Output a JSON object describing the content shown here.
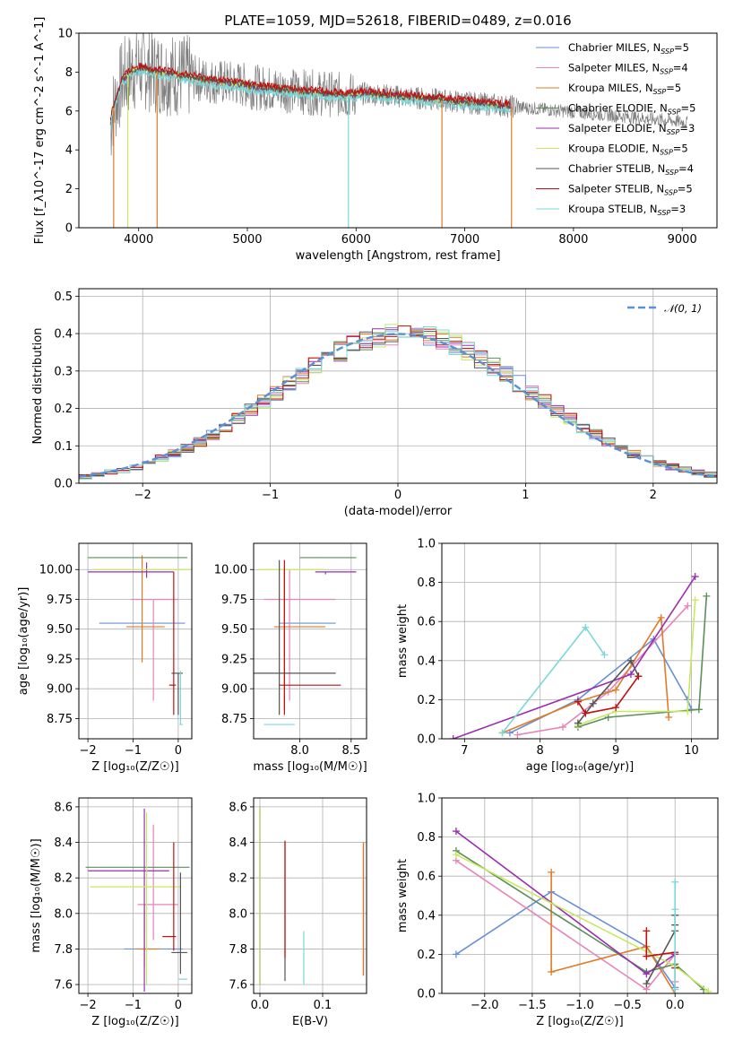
{
  "colors": [
    "#6a8fd8",
    "#e784b8",
    "#e07b25",
    "#5a8f5a",
    "#9b2db0",
    "#c8e860",
    "#555555",
    "#c01010",
    "#7ad8d8"
  ],
  "chart_data": [
    {
      "id": "spectrum",
      "type": "line",
      "title": "PLATE=1059, MJD=52618, FIBERID=0489, z=0.016",
      "xlabel": "wavelength [Angstrom, rest frame]",
      "ylabel": "Flux [f_λ10^-17 erg cm^-2 s^-1 A^-1]",
      "xlim": [
        3450,
        9320
      ],
      "ylim": [
        0,
        10
      ],
      "xticks": [
        "4000",
        "5000",
        "6000",
        "7000",
        "8000",
        "9000"
      ],
      "yticks": [
        "0",
        "2",
        "4",
        "6",
        "8",
        "10"
      ],
      "grid": false,
      "legend_placement": "upper-right",
      "legend": [
        {
          "label": "Chabrier MILES, N",
          "sub": "SSP",
          "suffix": "=5"
        },
        {
          "label": "Salpeter MILES, N",
          "sub": "SSP",
          "suffix": "=4"
        },
        {
          "label": "Kroupa MILES, N",
          "sub": "SSP",
          "suffix": "=5"
        },
        {
          "label": "Chabrier ELODIE, N",
          "sub": "SSP",
          "suffix": "=5"
        },
        {
          "label": "Salpeter ELODIE, N",
          "sub": "SSP",
          "suffix": "=3"
        },
        {
          "label": "Kroupa ELODIE, N",
          "sub": "SSP",
          "suffix": "=5"
        },
        {
          "label": "Chabrier STELIB, N",
          "sub": "SSP",
          "suffix": "=4"
        },
        {
          "label": "Salpeter STELIB, N",
          "sub": "SSP",
          "suffix": "=5"
        },
        {
          "label": "Kroupa STELIB, N",
          "sub": "SSP",
          "suffix": "=3"
        }
      ],
      "model_trend": {
        "x": [
          3750,
          3850,
          3950,
          4050,
          4150,
          4300,
          4500,
          4700,
          4900,
          5100,
          5300,
          5500,
          5700,
          5900,
          6100,
          6300,
          6500,
          6700,
          6900,
          7100,
          7300,
          7500,
          7700,
          7900,
          8100,
          8300,
          8500,
          8700,
          8900,
          9050
        ],
        "y": [
          5.8,
          7.6,
          8.1,
          8.2,
          8.0,
          7.9,
          7.7,
          7.5,
          7.4,
          7.2,
          7.1,
          7.0,
          6.9,
          6.8,
          6.9,
          6.8,
          6.7,
          6.6,
          6.5,
          6.4,
          6.3,
          6.2,
          6.1,
          6.0,
          5.9,
          5.8,
          5.7,
          5.6,
          5.5,
          5.4
        ]
      }
    },
    {
      "id": "residuals",
      "type": "step",
      "xlabel": "(data-model)/error",
      "ylabel": "Normed distribution",
      "xlim": [
        -2.5,
        2.5
      ],
      "ylim": [
        0,
        0.52
      ],
      "xticks": [
        "−2",
        "−1",
        "0",
        "1",
        "2"
      ],
      "yticks": [
        "0.0",
        "0.1",
        "0.2",
        "0.3",
        "0.4",
        "0.5"
      ],
      "grid": true,
      "legend": [
        {
          "label": "𝒩(0, 1)"
        }
      ],
      "bin_width": 0.1
    },
    {
      "id": "age-vs-Z",
      "type": "errorbar",
      "xlabel": "Z [log₁₀(Z/Z☉)]",
      "ylabel": "age  [log₁₀(age/yr)]",
      "xlim": [
        -2.2,
        0.3
      ],
      "ylim": [
        8.58,
        10.22
      ],
      "xticks": [
        "−2",
        "−1",
        "0"
      ],
      "yticks": [
        "8.75",
        "9.00",
        "9.25",
        "9.50",
        "9.75",
        "10.00"
      ],
      "grid": true,
      "points": [
        {
          "x": -0.6,
          "y": 9.55,
          "xerr": [
            1.15,
            0.75
          ],
          "yerr": [
            0.0,
            0.0
          ]
        },
        {
          "x": -0.55,
          "y": 9.75,
          "xerr": [
            0.5,
            0.55
          ],
          "yerr": [
            0.85,
            0.0
          ]
        },
        {
          "x": -0.8,
          "y": 9.52,
          "xerr": [
            0.35,
            0.5
          ],
          "yerr": [
            0.3,
            0.6
          ]
        },
        {
          "x": -0.9,
          "y": 10.1,
          "xerr": [
            1.1,
            1.1
          ],
          "yerr": [
            0.0,
            0.0
          ]
        },
        {
          "x": -0.7,
          "y": 9.98,
          "xerr": [
            1.3,
            0.6
          ],
          "yerr": [
            0.05,
            0.08
          ]
        },
        {
          "x": -0.6,
          "y": 10.0,
          "xerr": [
            1.3,
            0.9
          ],
          "yerr": [
            0.0,
            0.0
          ]
        },
        {
          "x": 0.0,
          "y": 9.13,
          "xerr": [
            0.15,
            0.1
          ],
          "yerr": [
            0.35,
            0.0
          ]
        },
        {
          "x": -0.1,
          "y": 9.03,
          "xerr": [
            0.1,
            0.05
          ],
          "yerr": [
            0.25,
            0.95
          ]
        },
        {
          "x": 0.05,
          "y": 8.7,
          "xerr": [
            0.02,
            0.05
          ],
          "yerr": [
            0.0,
            0.45
          ]
        }
      ]
    },
    {
      "id": "age-vs-mass",
      "type": "errorbar",
      "xlabel": "mass [log₁₀(M/M☉)]",
      "ylabel": "",
      "xlim": [
        7.55,
        8.65
      ],
      "ylim": [
        8.58,
        10.22
      ],
      "xticks": [
        "8.0",
        "8.5"
      ],
      "yticks": [
        "8.75",
        "9.00",
        "9.25",
        "9.50",
        "9.75",
        "10.00"
      ],
      "grid": true,
      "points": [
        {
          "x": 7.85,
          "y": 9.55,
          "xerr": [
            0.05,
            0.5
          ],
          "yerr": [
            0.35,
            0.45
          ]
        },
        {
          "x": 7.9,
          "y": 9.75,
          "xerr": [
            0.25,
            0.45
          ],
          "yerr": [
            0.85,
            0.25
          ]
        },
        {
          "x": 7.85,
          "y": 9.52,
          "xerr": [
            0.1,
            0.4
          ],
          "yerr": [
            0.7,
            0.5
          ]
        },
        {
          "x": 8.05,
          "y": 10.1,
          "xerr": [
            0.05,
            0.5
          ],
          "yerr": [
            0.0,
            0.0
          ]
        },
        {
          "x": 8.25,
          "y": 9.98,
          "xerr": [
            0.1,
            0.3
          ],
          "yerr": [
            0.02,
            0.0
          ]
        },
        {
          "x": 7.95,
          "y": 10.0,
          "xerr": [
            0.35,
            0.3
          ],
          "yerr": [
            0.0,
            0.0
          ]
        },
        {
          "x": 7.8,
          "y": 9.13,
          "xerr": [
            0.25,
            0.55
          ],
          "yerr": [
            0.35,
            0.95
          ]
        },
        {
          "x": 7.85,
          "y": 9.03,
          "xerr": [
            0.05,
            0.55
          ],
          "yerr": [
            0.25,
            1.05
          ]
        },
        {
          "x": 7.65,
          "y": 8.7,
          "xerr": [
            0.0,
            0.3
          ],
          "yerr": [
            0.0,
            0.0
          ]
        }
      ]
    },
    {
      "id": "weight-vs-age",
      "type": "line",
      "xlabel": "age  [log₁₀(age/yr)]",
      "ylabel": "mass weight",
      "xlim": [
        6.7,
        10.35
      ],
      "ylim": [
        0,
        1
      ],
      "xticks": [
        "7",
        "8",
        "9",
        "10"
      ],
      "yticks": [
        "0.0",
        "0.2",
        "0.4",
        "0.6",
        "0.8",
        "1.0"
      ],
      "grid": true,
      "series": [
        {
          "x": [
            7.6,
            8.5,
            9.5,
            9.95,
            10.0
          ],
          "y": [
            0.03,
            0.2,
            0.51,
            0.2,
            0.15
          ]
        },
        {
          "x": [
            7.7,
            8.3,
            8.9,
            9.95
          ],
          "y": [
            0.02,
            0.06,
            0.24,
            0.68
          ]
        },
        {
          "x": [
            7.5,
            8.5,
            9.0,
            9.6,
            9.7
          ],
          "y": [
            0.03,
            0.19,
            0.25,
            0.62,
            0.11
          ]
        },
        {
          "x": [
            8.5,
            8.9,
            10.1,
            10.2
          ],
          "y": [
            0.06,
            0.11,
            0.15,
            0.73
          ]
        },
        {
          "x": [
            6.85,
            9.2,
            10.05
          ],
          "y": [
            0.0,
            0.33,
            0.83
          ]
        },
        {
          "x": [
            8.5,
            9.0,
            9.95,
            10.05
          ],
          "y": [
            0.07,
            0.14,
            0.14,
            0.71
          ]
        },
        {
          "x": [
            8.5,
            8.7,
            9.2,
            9.3
          ],
          "y": [
            0.08,
            0.18,
            0.4,
            0.32
          ]
        },
        {
          "x": [
            8.5,
            8.6,
            9.0,
            9.3
          ],
          "y": [
            0.19,
            0.13,
            0.16,
            0.32
          ]
        },
        {
          "x": [
            7.5,
            8.6,
            8.85
          ],
          "y": [
            0.03,
            0.57,
            0.43
          ]
        }
      ]
    },
    {
      "id": "mass-vs-Z",
      "type": "errorbar",
      "xlabel": "Z [log₁₀(Z/Z☉)]",
      "ylabel": "mass [log₁₀(M/M☉)]",
      "xlim": [
        -2.2,
        0.3
      ],
      "ylim": [
        7.55,
        8.65
      ],
      "xticks": [
        "−2",
        "−1",
        "0"
      ],
      "yticks": [
        "7.6",
        "7.8",
        "8.0",
        "8.2",
        "8.4",
        "8.6"
      ],
      "grid": true,
      "points": [
        {
          "x": -0.6,
          "y": 7.8,
          "xerr": [
            0.6,
            0.7
          ],
          "yerr": [
            0.0,
            0.0
          ]
        },
        {
          "x": -0.55,
          "y": 8.05,
          "xerr": [
            0.35,
            0.55
          ],
          "yerr": [
            0.2,
            0.45
          ]
        },
        {
          "x": -0.75,
          "y": 7.8,
          "xerr": [
            0.2,
            0.35
          ],
          "yerr": [
            0.1,
            0.25
          ]
        },
        {
          "x": -0.9,
          "y": 8.26,
          "xerr": [
            1.15,
            1.15
          ],
          "yerr": [
            0.0,
            0.0
          ]
        },
        {
          "x": -0.75,
          "y": 8.24,
          "xerr": [
            1.25,
            0.55
          ],
          "yerr": [
            0.68,
            0.35
          ]
        },
        {
          "x": -0.7,
          "y": 8.15,
          "xerr": [
            1.25,
            0.75
          ],
          "yerr": [
            0.55,
            0.42
          ]
        },
        {
          "x": 0.05,
          "y": 7.78,
          "xerr": [
            0.2,
            0.15
          ],
          "yerr": [
            0.12,
            0.45
          ]
        },
        {
          "x": -0.1,
          "y": 7.87,
          "xerr": [
            0.25,
            0.05
          ],
          "yerr": [
            0.08,
            0.53
          ]
        },
        {
          "x": 0.05,
          "y": 7.63,
          "xerr": [
            0.05,
            0.15
          ],
          "yerr": [
            0.0,
            0.0
          ]
        }
      ]
    },
    {
      "id": "mass-vs-ebv",
      "type": "errorbar",
      "xlabel": "E(B-V)",
      "ylabel": "",
      "xlim": [
        -0.01,
        0.17
      ],
      "ylim": [
        7.55,
        8.65
      ],
      "xticks": [
        "0.0",
        "0.1"
      ],
      "yticks": [
        "7.6",
        "7.8",
        "8.0",
        "8.2",
        "8.4",
        "8.6"
      ],
      "grid": true,
      "points": [
        {
          "x": 0.165,
          "y": 8.0,
          "xerr": [
            0,
            0
          ],
          "yerr": [
            0.35,
            0.4
          ]
        },
        {
          "x": 0.165,
          "y": 8.0,
          "xerr": [
            0,
            0
          ],
          "yerr": [
            0.35,
            0.4
          ]
        },
        {
          "x": 0.165,
          "y": 8.0,
          "xerr": [
            0,
            0
          ],
          "yerr": [
            0.35,
            0.4
          ]
        },
        {
          "x": 0.0,
          "y": 8.1,
          "xerr": [
            0,
            0
          ],
          "yerr": [
            0.5,
            0.5
          ]
        },
        {
          "x": 0.0,
          "y": 8.1,
          "xerr": [
            0,
            0
          ],
          "yerr": [
            0.5,
            0.5
          ]
        },
        {
          "x": 0.0,
          "y": 8.1,
          "xerr": [
            0,
            0
          ],
          "yerr": [
            0.5,
            0.5
          ]
        },
        {
          "x": 0.04,
          "y": 8.0,
          "xerr": [
            0,
            0
          ],
          "yerr": [
            0.38,
            0.4
          ]
        },
        {
          "x": 0.04,
          "y": 8.08,
          "xerr": [
            0,
            0
          ],
          "yerr": [
            0.33,
            0.33
          ]
        },
        {
          "x": 0.07,
          "y": 7.7,
          "xerr": [
            0,
            0
          ],
          "yerr": [
            0.1,
            0.2
          ]
        }
      ]
    },
    {
      "id": "weight-vs-Z",
      "type": "line",
      "xlabel": "Z [log₁₀(Z/Z☉)]",
      "ylabel": "mass weight",
      "xlim": [
        -2.45,
        0.45
      ],
      "ylim": [
        0,
        1
      ],
      "xticks": [
        "−2.0",
        "−1.5",
        "−1.0",
        "−0.5",
        "0.0"
      ],
      "yticks": [
        "0.0",
        "0.2",
        "0.4",
        "0.6",
        "0.8",
        "1.0"
      ],
      "grid": true,
      "series": [
        {
          "x": [
            -2.3,
            -1.3,
            -0.3,
            0.0
          ],
          "y": [
            0.2,
            0.52,
            0.24,
            0.03
          ]
        },
        {
          "x": [
            -2.3,
            -0.3,
            0.0,
            0.0
          ],
          "y": [
            0.68,
            0.02,
            0.2,
            0.06
          ]
        },
        {
          "x": [
            -1.3,
            -1.3,
            -0.3,
            0.0,
            0.0
          ],
          "y": [
            0.62,
            0.11,
            0.24,
            0.0,
            0.2
          ]
        },
        {
          "x": [
            -2.3,
            -0.3,
            0.0,
            0.3
          ],
          "y": [
            0.73,
            0.11,
            0.15,
            0.02
          ]
        },
        {
          "x": [
            -2.3,
            -0.3,
            0.0
          ],
          "y": [
            0.83,
            0.1,
            0.2
          ]
        },
        {
          "x": [
            -2.3,
            0.0,
            0.35
          ],
          "y": [
            0.71,
            0.14,
            0.01
          ]
        },
        {
          "x": [
            -0.3,
            0.0,
            0.0,
            0.0
          ],
          "y": [
            0.05,
            0.32,
            0.35,
            0.4
          ]
        },
        {
          "x": [
            -0.3,
            -0.3,
            0.0,
            0.0
          ],
          "y": [
            0.32,
            0.19,
            0.21,
            0.13
          ]
        },
        {
          "x": [
            0.0,
            0.0,
            0.0
          ],
          "y": [
            0.57,
            0.43,
            0.02
          ]
        }
      ]
    }
  ]
}
